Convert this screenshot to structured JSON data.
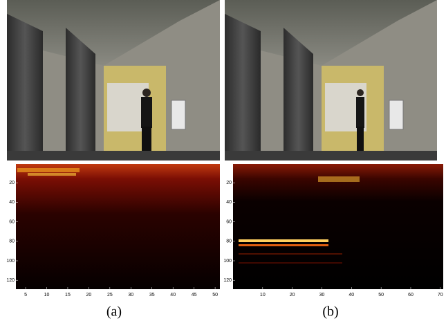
{
  "figure": {
    "panels": [
      {
        "caption": "(a)",
        "heatmap": {
          "xticks": [
            5,
            10,
            15,
            20,
            25,
            30,
            35,
            40,
            45,
            50
          ],
          "yticks": [
            20,
            40,
            60,
            80,
            100,
            120
          ]
        }
      },
      {
        "caption": "(b)",
        "heatmap": {
          "xticks": [
            10,
            20,
            30,
            40,
            50,
            60,
            70
          ],
          "yticks": [
            20,
            40,
            60,
            80,
            100,
            120
          ]
        }
      }
    ]
  }
}
